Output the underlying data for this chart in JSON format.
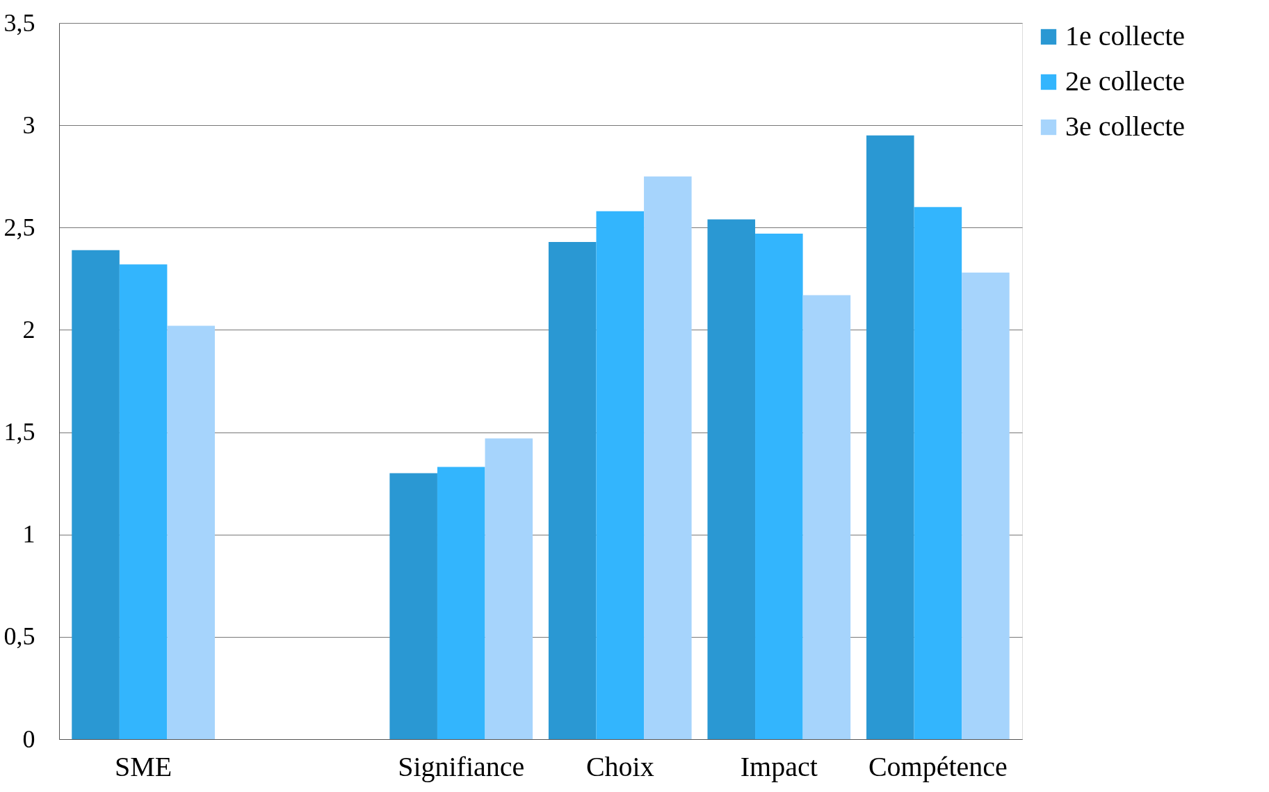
{
  "chart_data": {
    "type": "bar",
    "categories": [
      "SME",
      null,
      "Signifiance",
      "Choix",
      "Impact",
      "Compétence"
    ],
    "series": [
      {
        "name": "1e collecte",
        "color": "#2a98d3",
        "values": [
          2.39,
          null,
          1.3,
          2.43,
          2.54,
          2.95
        ]
      },
      {
        "name": "2e collecte",
        "color": "#33b5fd",
        "values": [
          2.32,
          null,
          1.33,
          2.58,
          2.47,
          2.6
        ]
      },
      {
        "name": "3e collecte",
        "color": "#a6d4fc",
        "values": [
          2.02,
          null,
          1.47,
          2.75,
          2.17,
          2.28
        ]
      }
    ],
    "ylim": [
      0,
      3.5
    ],
    "yticks": [
      0,
      {
        "value": 0.5,
        "label": "0,5"
      },
      1,
      {
        "value": 1.5,
        "label": "1,5"
      },
      2,
      {
        "value": 2.5,
        "label": "2,5"
      },
      3,
      {
        "value": 3.5,
        "label": "3,5"
      }
    ],
    "grid": "y",
    "legend": "right"
  }
}
